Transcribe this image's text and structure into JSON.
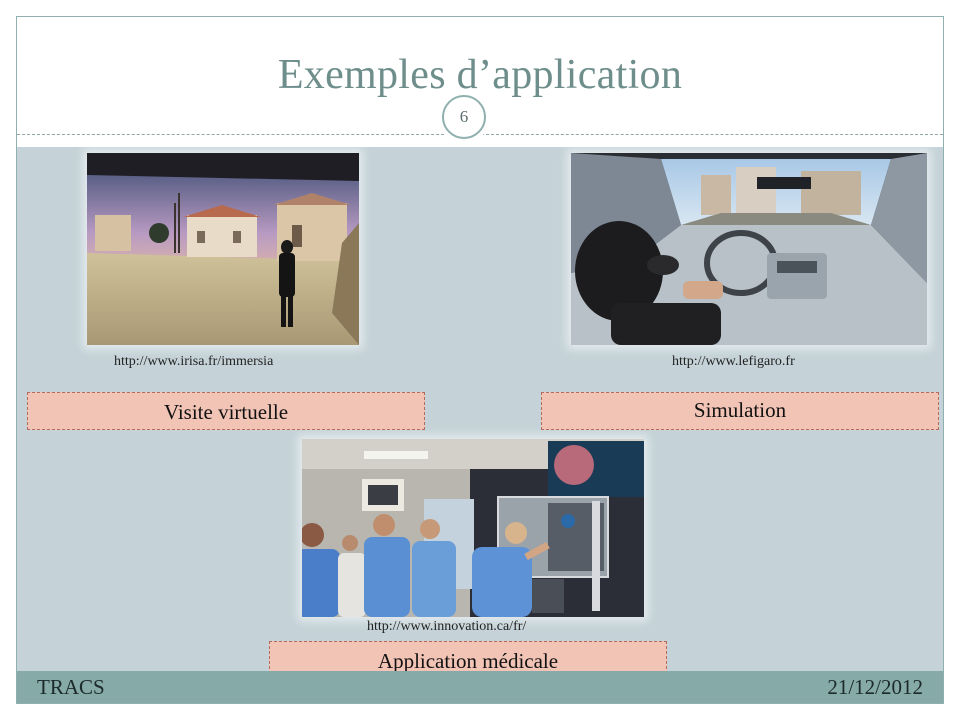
{
  "slide": {
    "title": "Exemples d’application",
    "number": "6"
  },
  "items": [
    {
      "source": "http://www.irisa.fr/immersia",
      "label": "Visite virtuelle"
    },
    {
      "source": "http://www.lefigaro.fr",
      "label": "Simulation"
    },
    {
      "source": "http://www.innovation.ca/fr/",
      "label": "Application médicale"
    }
  ],
  "footer": {
    "left": "TRACS",
    "right": "21/12/2012"
  }
}
